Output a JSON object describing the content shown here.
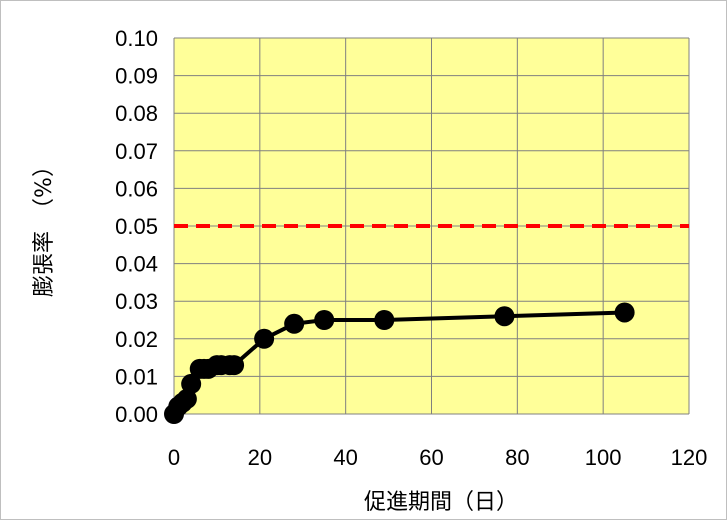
{
  "chart_data": {
    "type": "line",
    "xlabel": "促進期間（日）",
    "ylabel": "膨張率　（%）",
    "xlim": [
      0,
      120
    ],
    "ylim": [
      0,
      0.1
    ],
    "x_ticks": [
      "0",
      "20",
      "40",
      "60",
      "80",
      "100",
      "120"
    ],
    "y_ticks": [
      "0.00",
      "0.01",
      "0.02",
      "0.03",
      "0.04",
      "0.05",
      "0.06",
      "0.07",
      "0.08",
      "0.09",
      "0.10"
    ],
    "grid": true,
    "plot_background": "#ffff99",
    "series": [
      {
        "color": "#000000",
        "marker": "circle",
        "x": [
          0,
          1,
          2,
          3,
          4,
          6,
          7,
          8,
          10,
          11,
          13,
          14,
          21,
          28,
          35,
          49,
          77,
          105
        ],
        "y": [
          0.0,
          0.002,
          0.003,
          0.004,
          0.008,
          0.012,
          0.012,
          0.012,
          0.013,
          0.013,
          0.013,
          0.013,
          0.02,
          0.024,
          0.025,
          0.025,
          0.026,
          0.027
        ]
      }
    ],
    "reference_line": {
      "y": 0.05,
      "color": "#ff0000",
      "style": "dashed"
    }
  }
}
